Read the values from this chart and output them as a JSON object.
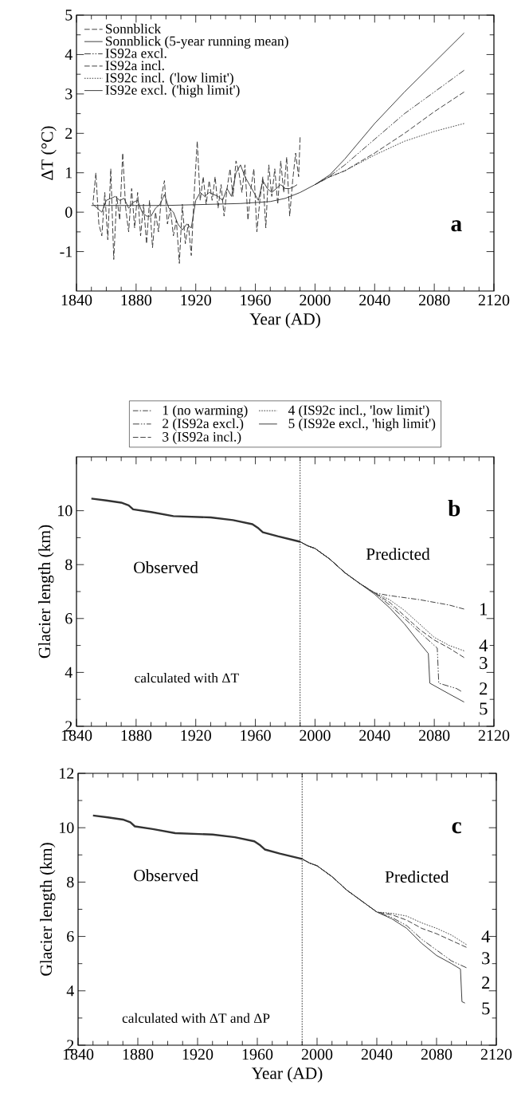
{
  "chart_data": [
    {
      "type": "line",
      "xlabel": "Year (AD)",
      "ylabel": "ΔT (°C)",
      "xlim": [
        1840,
        2120
      ],
      "ylim": [
        -2,
        5
      ],
      "xticks": [
        1840,
        1880,
        1920,
        1960,
        2000,
        2040,
        2080,
        2120
      ],
      "yticks": [
        -1,
        0,
        1,
        2,
        3,
        4,
        5
      ],
      "legend": "top left",
      "grid": false,
      "annotations": [
        "a"
      ],
      "series": [
        {
          "name": "Sonnblick",
          "color": "#333333",
          "line_style": "dashed",
          "x": [
            1851,
            1853,
            1855,
            1857,
            1859,
            1861,
            1863,
            1865,
            1867,
            1869,
            1871,
            1873,
            1875,
            1877,
            1879,
            1881,
            1883,
            1885,
            1887,
            1889,
            1891,
            1893,
            1895,
            1897,
            1899,
            1901,
            1903,
            1905,
            1907,
            1909,
            1911,
            1913,
            1915,
            1917,
            1919,
            1921,
            1923,
            1925,
            1927,
            1929,
            1931,
            1933,
            1935,
            1937,
            1939,
            1941,
            1943,
            1945,
            1947,
            1949,
            1951,
            1953,
            1955,
            1957,
            1959,
            1961,
            1963,
            1965,
            1967,
            1969,
            1971,
            1973,
            1975,
            1977,
            1979,
            1981,
            1983,
            1985,
            1987,
            1989,
            1990
          ],
          "values": [
            0.2,
            1.0,
            -0.3,
            -0.6,
            0.5,
            -0.7,
            1.1,
            -1.2,
            0.4,
            -0.2,
            1.5,
            0.1,
            -0.5,
            0.6,
            -0.4,
            0.5,
            -0.6,
            0.2,
            -0.8,
            0.3,
            -0.9,
            0.0,
            -0.5,
            0.4,
            0.8,
            -0.3,
            0.1,
            -0.6,
            -0.2,
            -1.3,
            0.2,
            -0.8,
            -0.3,
            -1.1,
            0.5,
            1.8,
            0.3,
            0.9,
            0.2,
            0.8,
            0.3,
            0.9,
            0.1,
            0.7,
            -0.1,
            0.6,
            1.1,
            0.4,
            1.3,
            1.0,
            0.5,
            1.2,
            -0.2,
            0.6,
            1.1,
            -0.5,
            0.3,
            0.9,
            -0.4,
            1.2,
            0.4,
            1.1,
            0.2,
            1.3,
            0.5,
            1.4,
            -0.1,
            0.8,
            1.5,
            0.9,
            1.9
          ]
        },
        {
          "name": "Sonnblick (5-year running mean)",
          "color": "#333333",
          "line_style": "solid",
          "x": [
            1851,
            1854,
            1857,
            1860,
            1863,
            1866,
            1869,
            1872,
            1875,
            1878,
            1881,
            1884,
            1887,
            1890,
            1893,
            1896,
            1899,
            1902,
            1905,
            1908,
            1911,
            1914,
            1917,
            1920,
            1923,
            1926,
            1929,
            1932,
            1935,
            1938,
            1941,
            1944,
            1947,
            1950,
            1953,
            1956,
            1959,
            1962,
            1965,
            1968,
            1971,
            1974,
            1977,
            1980,
            1983,
            1986,
            1988
          ],
          "values": [
            0.2,
            0.1,
            0.0,
            0.3,
            0.35,
            0.4,
            0.3,
            0.35,
            0.1,
            0.25,
            0.3,
            0.0,
            -0.1,
            -0.1,
            0.1,
            0.2,
            0.45,
            0.1,
            0.0,
            -0.3,
            -0.45,
            -0.3,
            -0.4,
            0.3,
            0.5,
            0.4,
            0.5,
            0.45,
            0.4,
            0.3,
            0.6,
            0.4,
            1.0,
            1.2,
            0.9,
            0.7,
            0.5,
            0.3,
            0.8,
            0.6,
            0.5,
            0.6,
            0.7,
            0.6,
            0.6,
            0.65,
            0.7
          ]
        },
        {
          "name": "IS92a excl.",
          "color": "#333333",
          "line_style": "dashdotdot",
          "x": [
            2000,
            2010,
            2020,
            2040,
            2060,
            2080,
            2100
          ],
          "values": [
            0.7,
            0.92,
            1.2,
            1.85,
            2.5,
            3.05,
            3.6
          ]
        },
        {
          "name": "IS92a incl.",
          "color": "#333333",
          "line_style": "dashed",
          "x": [
            2000,
            2010,
            2020,
            2040,
            2060,
            2080,
            2100
          ],
          "values": [
            0.7,
            0.9,
            1.05,
            1.5,
            2.0,
            2.55,
            3.05
          ]
        },
        {
          "name": "IS92c incl. ('low limit')",
          "color": "#333333",
          "line_style": "dotted",
          "x": [
            2000,
            2010,
            2020,
            2040,
            2060,
            2080,
            2100
          ],
          "values": [
            0.7,
            0.9,
            1.05,
            1.45,
            1.8,
            2.05,
            2.25
          ]
        },
        {
          "name": "IS92e excl. ('high limit')",
          "color": "#333333",
          "line_style": "solid",
          "x": [
            1850,
            1900,
            1950,
            1970,
            1980,
            1990,
            2000,
            2010,
            2020,
            2040,
            2060,
            2080,
            2100
          ],
          "values": [
            0.17,
            0.17,
            0.22,
            0.27,
            0.35,
            0.5,
            0.7,
            0.95,
            1.35,
            2.25,
            3.05,
            3.8,
            4.55
          ]
        }
      ]
    },
    {
      "type": "line",
      "ylabel": "Glacier length (km)",
      "xlim": [
        1840,
        2120
      ],
      "ylim": [
        2,
        12
      ],
      "xticks": [
        1840,
        1880,
        1920,
        1960,
        2000,
        2040,
        2080,
        2120
      ],
      "yticks": [
        2,
        4,
        6,
        8,
        10
      ],
      "legend": "top",
      "grid": false,
      "ref_lines": [
        {
          "axis": "x",
          "value": 1990,
          "line_style": "dotted"
        }
      ],
      "annotations": [
        "b",
        "Observed",
        "Predicted",
        "calculated with ΔT",
        "1",
        "4",
        "3",
        "2",
        "5"
      ],
      "series": [
        {
          "color": "#333333",
          "line_style": "solid",
          "x": [
            1850,
            1860,
            1870,
            1875,
            1878,
            1890,
            1905,
            1930,
            1945,
            1958,
            1962,
            1965,
            1975,
            1990
          ],
          "values": [
            10.45,
            10.38,
            10.3,
            10.2,
            10.05,
            9.95,
            9.8,
            9.75,
            9.65,
            9.5,
            9.35,
            9.2,
            9.05,
            8.85
          ]
        },
        {
          "name": "1 (no warming)",
          "color": "#333333",
          "line_style": "dashdot",
          "x": [
            1990,
            1995,
            2000,
            2010,
            2020,
            2030,
            2040,
            2050,
            2070,
            2090,
            2100
          ],
          "values": [
            8.85,
            8.7,
            8.6,
            8.2,
            7.7,
            7.3,
            6.95,
            6.85,
            6.7,
            6.5,
            6.35
          ]
        },
        {
          "name": "2 (IS92a excl.)",
          "color": "#333333",
          "line_style": "dashdotdot",
          "x": [
            1990,
            1995,
            2000,
            2010,
            2020,
            2030,
            2040,
            2050,
            2060,
            2070,
            2082,
            2083,
            2095,
            2098
          ],
          "values": [
            8.85,
            8.7,
            8.6,
            8.2,
            7.7,
            7.3,
            6.95,
            6.5,
            6.0,
            5.5,
            4.9,
            3.6,
            3.4,
            3.3
          ]
        },
        {
          "name": "3 (IS92a incl.)",
          "color": "#333333",
          "line_style": "dashed",
          "x": [
            1990,
            1995,
            2000,
            2010,
            2020,
            2030,
            2040,
            2050,
            2060,
            2070,
            2080,
            2090,
            2100
          ],
          "values": [
            8.85,
            8.7,
            8.6,
            8.2,
            7.7,
            7.3,
            6.95,
            6.6,
            6.1,
            5.6,
            5.2,
            4.9,
            4.55
          ]
        },
        {
          "name": "4 (IS92c incl., 'low limit')",
          "color": "#333333",
          "line_style": "dotted",
          "x": [
            1990,
            1995,
            2000,
            2010,
            2020,
            2030,
            2040,
            2050,
            2060,
            2070,
            2080,
            2090,
            2100
          ],
          "values": [
            8.85,
            8.7,
            8.6,
            8.2,
            7.7,
            7.3,
            6.95,
            6.7,
            6.3,
            5.8,
            5.3,
            5.0,
            4.8
          ]
        },
        {
          "name": "5 (IS92e excl., 'high limit')",
          "color": "#333333",
          "line_style": "solid",
          "x": [
            1990,
            1995,
            2000,
            2010,
            2020,
            2030,
            2040,
            2050,
            2060,
            2070,
            2076,
            2077,
            2090,
            2100
          ],
          "values": [
            8.85,
            8.7,
            8.6,
            8.2,
            7.7,
            7.3,
            6.9,
            6.4,
            5.8,
            5.1,
            4.7,
            3.6,
            3.2,
            2.9
          ]
        }
      ]
    },
    {
      "type": "line",
      "xlabel": "Year (AD)",
      "ylabel": "Glacier length (km)",
      "xlim": [
        1840,
        2120
      ],
      "ylim": [
        2,
        12
      ],
      "xticks": [
        1840,
        1880,
        1920,
        1960,
        2000,
        2040,
        2080,
        2120
      ],
      "yticks": [
        2,
        4,
        6,
        8,
        10,
        12
      ],
      "grid": false,
      "ref_lines": [
        {
          "axis": "x",
          "value": 1990,
          "line_style": "dotted"
        }
      ],
      "annotations": [
        "c",
        "Observed",
        "Predicted",
        "calculated with ΔT and ΔP",
        "4",
        "3",
        "2",
        "5"
      ],
      "series": [
        {
          "color": "#333333",
          "line_style": "solid",
          "x": [
            1850,
            1860,
            1870,
            1875,
            1878,
            1890,
            1905,
            1930,
            1945,
            1958,
            1962,
            1965,
            1975,
            1990
          ],
          "values": [
            10.45,
            10.38,
            10.3,
            10.2,
            10.05,
            9.95,
            9.8,
            9.75,
            9.65,
            9.5,
            9.35,
            9.2,
            9.05,
            8.85
          ]
        },
        {
          "color": "#333333",
          "line_style": "dashdotdot",
          "x": [
            1990,
            1995,
            2000,
            2010,
            2020,
            2030,
            2040,
            2050,
            2060,
            2070,
            2080,
            2090,
            2100
          ],
          "values": [
            8.85,
            8.7,
            8.6,
            8.2,
            7.7,
            7.3,
            6.9,
            6.7,
            6.4,
            5.9,
            5.5,
            5.1,
            4.85
          ]
        },
        {
          "color": "#333333",
          "line_style": "dashed",
          "x": [
            1990,
            1995,
            2000,
            2010,
            2020,
            2030,
            2040,
            2050,
            2060,
            2070,
            2080,
            2090,
            2100
          ],
          "values": [
            8.85,
            8.7,
            8.6,
            8.2,
            7.7,
            7.3,
            6.9,
            6.8,
            6.6,
            6.3,
            6.1,
            5.85,
            5.6
          ]
        },
        {
          "color": "#333333",
          "line_style": "dotted",
          "x": [
            1990,
            1995,
            2000,
            2010,
            2020,
            2030,
            2040,
            2050,
            2060,
            2070,
            2080,
            2090,
            2100
          ],
          "values": [
            8.85,
            8.7,
            8.6,
            8.2,
            7.7,
            7.3,
            6.9,
            6.85,
            6.75,
            6.5,
            6.3,
            6.05,
            5.7
          ]
        },
        {
          "color": "#333333",
          "line_style": "solid",
          "x": [
            1990,
            1995,
            2000,
            2010,
            2020,
            2030,
            2040,
            2050,
            2060,
            2070,
            2080,
            2090,
            2096,
            2097,
            2099
          ],
          "values": [
            8.85,
            8.7,
            8.6,
            8.2,
            7.7,
            7.3,
            6.9,
            6.65,
            6.3,
            5.75,
            5.3,
            5.0,
            4.8,
            3.6,
            3.55
          ]
        }
      ]
    }
  ]
}
